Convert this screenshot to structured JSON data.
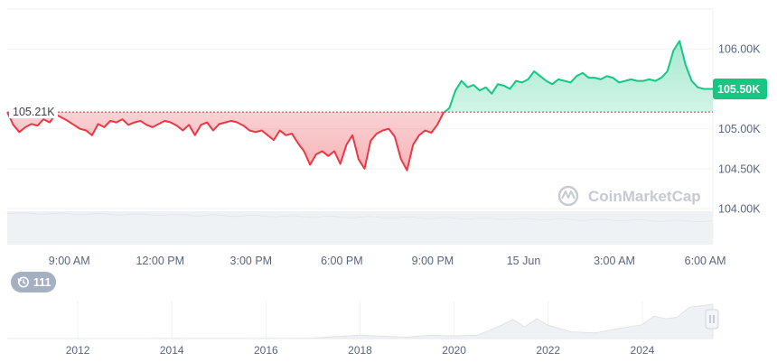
{
  "chart_data": {
    "type": "line",
    "currency_suffix": "K",
    "watermark": "CoinMarketCap",
    "reference_value": 105.21,
    "reference_label": "105.21K",
    "current_value": 105.5,
    "current_label": "105.50K",
    "ylim": [
      103.55,
      106.5
    ],
    "y_ticks": [
      {
        "value": 106.0,
        "label": "106.00K"
      },
      {
        "value": 105.0,
        "label": "105.00K"
      },
      {
        "value": 104.5,
        "label": "104.50K"
      },
      {
        "value": 104.0,
        "label": "104.00K"
      }
    ],
    "x_ticks": [
      "9:00 AM",
      "12:00 PM",
      "3:00 PM",
      "6:00 PM",
      "9:00 PM",
      "15 Jun",
      "3:00 AM",
      "6:00 AM"
    ],
    "x_tick_hours": [
      9,
      12,
      15,
      18,
      21,
      24,
      27,
      30
    ],
    "xlim_hours": [
      6.95,
      30.25
    ],
    "colors": {
      "up": "#16c784",
      "down": "#ea3943",
      "badge": "#16c784"
    },
    "series": [
      {
        "x": [
          6.95,
          7.15,
          7.35,
          7.55,
          7.75,
          7.95,
          8.15,
          8.35,
          8.55,
          8.75,
          8.95,
          9.15,
          9.35,
          9.55,
          9.75,
          9.95,
          10.15,
          10.35,
          10.55,
          10.75,
          10.95,
          11.15,
          11.35,
          11.55,
          11.75,
          11.95,
          12.15,
          12.35,
          12.55,
          12.75,
          12.95,
          13.15,
          13.35,
          13.55,
          13.75,
          13.95,
          14.15,
          14.35,
          14.55,
          14.75,
          14.95,
          15.15,
          15.35,
          15.55,
          15.75,
          15.95,
          16.15,
          16.35,
          16.55,
          16.75,
          16.95,
          17.15,
          17.35,
          17.55,
          17.75,
          17.95,
          18.15,
          18.35,
          18.55,
          18.75,
          18.95,
          19.15,
          19.35,
          19.55,
          19.75,
          19.95,
          20.15,
          20.35,
          20.55,
          20.75,
          20.95,
          21.15,
          21.35,
          21.55,
          21.75,
          21.95,
          22.15,
          22.35,
          22.55,
          22.75,
          22.95,
          23.15,
          23.35,
          23.55,
          23.75,
          23.95,
          24.15,
          24.35,
          24.55,
          24.75,
          24.95,
          25.15,
          25.35,
          25.55,
          25.75,
          25.95,
          26.15,
          26.35,
          26.55,
          26.75,
          26.95,
          27.15,
          27.35,
          27.55,
          27.75,
          27.95,
          28.15,
          28.35,
          28.55,
          28.75,
          28.95,
          29.15,
          29.35,
          29.55,
          29.75,
          29.95,
          30.15,
          30.25
        ],
        "y": [
          105.21,
          105.05,
          104.96,
          105.02,
          105.06,
          105.04,
          105.12,
          105.08,
          105.18,
          105.14,
          105.1,
          105.05,
          105.0,
          104.98,
          104.92,
          105.06,
          105.02,
          105.1,
          105.08,
          105.12,
          105.05,
          105.08,
          105.1,
          105.05,
          105.02,
          105.06,
          105.1,
          105.08,
          105.04,
          104.98,
          105.05,
          104.92,
          105.05,
          105.08,
          104.98,
          105.06,
          105.08,
          105.1,
          105.08,
          105.04,
          104.98,
          104.96,
          104.98,
          104.92,
          104.86,
          104.98,
          104.92,
          104.94,
          104.82,
          104.72,
          104.55,
          104.68,
          104.72,
          104.66,
          104.72,
          104.56,
          104.8,
          104.92,
          104.62,
          104.5,
          104.85,
          104.94,
          104.98,
          105.0,
          104.9,
          104.62,
          104.48,
          104.8,
          104.92,
          104.98,
          104.95,
          105.05,
          105.2,
          105.26,
          105.48,
          105.6,
          105.52,
          105.55,
          105.48,
          105.52,
          105.44,
          105.56,
          105.54,
          105.5,
          105.6,
          105.58,
          105.62,
          105.72,
          105.66,
          105.6,
          105.56,
          105.62,
          105.6,
          105.58,
          105.66,
          105.7,
          105.64,
          105.64,
          105.62,
          105.66,
          105.64,
          105.58,
          105.6,
          105.62,
          105.6,
          105.6,
          105.62,
          105.6,
          105.64,
          105.72,
          105.98,
          106.1,
          105.8,
          105.6,
          105.52,
          105.5,
          105.5,
          105.5
        ]
      }
    ],
    "navigator": {
      "x_ticks": [
        "2012",
        "2014",
        "2016",
        "2018",
        "2020",
        "2022",
        "2024"
      ],
      "x_tick_years": [
        2012,
        2014,
        2016,
        2018,
        2020,
        2022,
        2024
      ],
      "xlim_years": [
        2010.5,
        2025.5
      ],
      "years": [
        2010.5,
        2011,
        2011.5,
        2012,
        2012.5,
        2013,
        2013.5,
        2014,
        2014.5,
        2015,
        2015.5,
        2016,
        2016.5,
        2017,
        2017.5,
        2018,
        2018.5,
        2019,
        2019.5,
        2020,
        2020.5,
        2021,
        2021.25,
        2021.5,
        2021.75,
        2022,
        2022.5,
        2023,
        2023.5,
        2024,
        2024.25,
        2024.5,
        2024.75,
        2025,
        2025.3,
        2025.5
      ],
      "prices": [
        0,
        0.001,
        0.003,
        0.005,
        0.01,
        0.1,
        0.1,
        0.5,
        0.4,
        0.3,
        0.3,
        0.45,
        0.7,
        1.5,
        6,
        10,
        7,
        4,
        10,
        8,
        10,
        40,
        58,
        35,
        60,
        40,
        20,
        17,
        30,
        42,
        68,
        60,
        65,
        95,
        100,
        104
      ],
      "badge_value": "111"
    }
  }
}
